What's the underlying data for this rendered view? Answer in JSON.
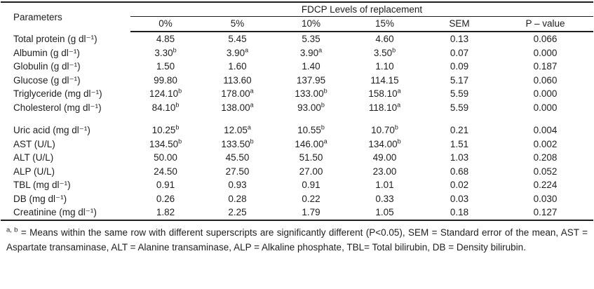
{
  "header": {
    "parameters_label": "Parameters",
    "group_label": "FDCP Levels of replacement",
    "columns": [
      "0%",
      "5%",
      "10%",
      "15%",
      "SEM",
      "P – value"
    ]
  },
  "table": {
    "groups": [
      {
        "rows": [
          {
            "param": "Total protein (g dl⁻¹)",
            "cells": [
              {
                "v": "4.85"
              },
              {
                "v": "5.45"
              },
              {
                "v": "5.35"
              },
              {
                "v": "4.60"
              },
              {
                "v": "0.13"
              },
              {
                "v": "0.066"
              }
            ]
          },
          {
            "param": "Albumin (g dl⁻¹)",
            "cells": [
              {
                "v": "3.30",
                "sup": "b"
              },
              {
                "v": "3.90",
                "sup": "a"
              },
              {
                "v": "3.90",
                "sup": "a"
              },
              {
                "v": "3.50",
                "sup": "b"
              },
              {
                "v": "0.07"
              },
              {
                "v": "0.000"
              }
            ]
          },
          {
            "param": "Globulin (g dl⁻¹)",
            "cells": [
              {
                "v": "1.50"
              },
              {
                "v": "1.60"
              },
              {
                "v": "1.40"
              },
              {
                "v": "1.10"
              },
              {
                "v": "0.09"
              },
              {
                "v": "0.187"
              }
            ]
          },
          {
            "param": "Glucose (g dl⁻¹)",
            "cells": [
              {
                "v": "99.80"
              },
              {
                "v": "113.60"
              },
              {
                "v": "137.95"
              },
              {
                "v": "114.15"
              },
              {
                "v": "5.17"
              },
              {
                "v": "0.060"
              }
            ]
          },
          {
            "param": "Triglyceride (mg dl⁻¹)",
            "cells": [
              {
                "v": "124.10",
                "sup": "b"
              },
              {
                "v": "178.00",
                "sup": "a"
              },
              {
                "v": "133.00",
                "sup": "b"
              },
              {
                "v": "158.10",
                "sup": "a"
              },
              {
                "v": "5.59"
              },
              {
                "v": "0.000"
              }
            ]
          },
          {
            "param": "Cholesterol (mg dl⁻¹)",
            "cells": [
              {
                "v": "84.10",
                "sup": "b"
              },
              {
                "v": "138.00",
                "sup": "a"
              },
              {
                "v": "93.00",
                "sup": "b"
              },
              {
                "v": "118.10",
                "sup": "a"
              },
              {
                "v": "5.59"
              },
              {
                "v": "0.000"
              }
            ]
          }
        ]
      },
      {
        "rows": [
          {
            "param": "Uric acid (mg dl⁻¹)",
            "cells": [
              {
                "v": "10.25",
                "sup": "b"
              },
              {
                "v": "12.05",
                "sup": "a"
              },
              {
                "v": "10.55",
                "sup": "b"
              },
              {
                "v": "10.70",
                "sup": "b"
              },
              {
                "v": "0.21"
              },
              {
                "v": "0.004"
              }
            ]
          },
          {
            "param": "AST (U/L)",
            "cells": [
              {
                "v": "134.50",
                "sup": "b"
              },
              {
                "v": "133.50",
                "sup": "b"
              },
              {
                "v": "146.00",
                "sup": "a"
              },
              {
                "v": "134.00",
                "sup": "b"
              },
              {
                "v": "1.51"
              },
              {
                "v": "0.002"
              }
            ]
          },
          {
            "param": "ALT (U/L)",
            "cells": [
              {
                "v": "50.00"
              },
              {
                "v": "45.50"
              },
              {
                "v": "51.50"
              },
              {
                "v": "49.00"
              },
              {
                "v": "1.03"
              },
              {
                "v": "0.208"
              }
            ]
          },
          {
            "param": "ALP (U/L)",
            "cells": [
              {
                "v": "24.50"
              },
              {
                "v": "27.50"
              },
              {
                "v": "27.00"
              },
              {
                "v": "23.00"
              },
              {
                "v": "0.68"
              },
              {
                "v": "0.052"
              }
            ]
          },
          {
            "param": "TBL (mg dl⁻¹)",
            "cells": [
              {
                "v": "0.91"
              },
              {
                "v": "0.93"
              },
              {
                "v": "0.91"
              },
              {
                "v": "1.01"
              },
              {
                "v": "0.02"
              },
              {
                "v": "0.224"
              }
            ]
          },
          {
            "param": "DB (mg dl⁻¹)",
            "cells": [
              {
                "v": "0.26"
              },
              {
                "v": "0.28"
              },
              {
                "v": "0.22"
              },
              {
                "v": "0.33"
              },
              {
                "v": "0.03"
              },
              {
                "v": "0.030"
              }
            ]
          },
          {
            "param": "Creatinine (mg dl⁻¹)",
            "cells": [
              {
                "v": "1.82"
              },
              {
                "v": "2.25"
              },
              {
                "v": "1.79"
              },
              {
                "v": "1.05"
              },
              {
                "v": "0.18"
              },
              {
                "v": "0.127"
              }
            ]
          }
        ]
      }
    ]
  },
  "footnote": {
    "superscript_prefix": "a, b",
    "text": " = Means within the same row with different superscripts are significantly different (P<0.05), SEM = Standard error of the mean, AST = Aspartate transaminase, ALT = Alanine transaminase, ALP = Alkaline phosphate, TBL= Total bilirubin, DB = Density bilirubin."
  },
  "colors": {
    "text": "#1e1e1e",
    "rule": "#1e1e1e",
    "background": "#ffffff"
  }
}
